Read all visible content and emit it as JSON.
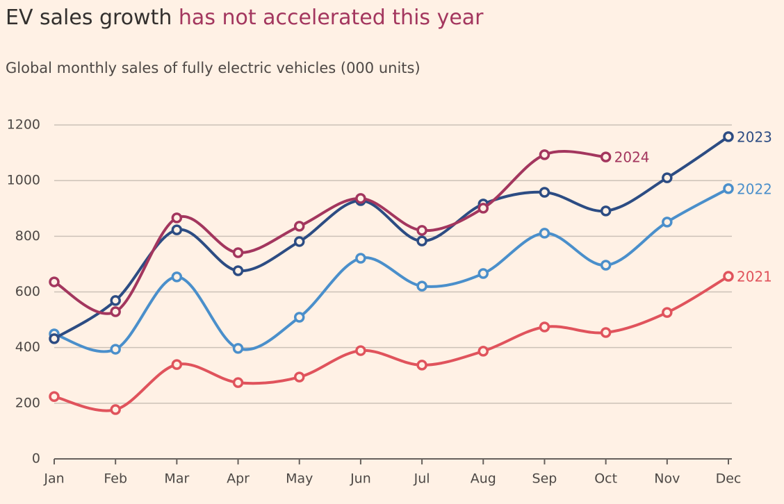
{
  "chart_data": {
    "type": "line",
    "title": "EV sales growth",
    "title_highlight": "has not accelerated this year",
    "subtitle": "Global monthly sales of fully electric vehicles (000 units)",
    "categories": [
      "Jan",
      "Feb",
      "Mar",
      "Apr",
      "May",
      "Jun",
      "Jul",
      "Aug",
      "Sep",
      "Oct",
      "Nov",
      "Dec"
    ],
    "series": [
      {
        "name": "2021",
        "color": "#e0535c",
        "values": [
          224,
          177,
          339,
          274,
          294,
          389,
          337,
          387,
          474,
          454,
          526,
          656
        ]
      },
      {
        "name": "2022",
        "color": "#4a8fcb",
        "values": [
          449,
          394,
          654,
          397,
          509,
          721,
          621,
          666,
          811,
          696,
          851,
          971
        ]
      },
      {
        "name": "2023",
        "color": "#2c4c83",
        "values": [
          432,
          569,
          823,
          676,
          781,
          928,
          783,
          916,
          958,
          891,
          1010,
          1158
        ]
      },
      {
        "name": "2024",
        "color": "#a3365e",
        "values": [
          636,
          529,
          866,
          741,
          836,
          936,
          821,
          901,
          1093,
          1085,
          null,
          null
        ]
      }
    ],
    "ylim": [
      0,
      1200
    ],
    "yticks": [
      0,
      200,
      400,
      600,
      800,
      1000,
      1200
    ],
    "grid": true
  }
}
